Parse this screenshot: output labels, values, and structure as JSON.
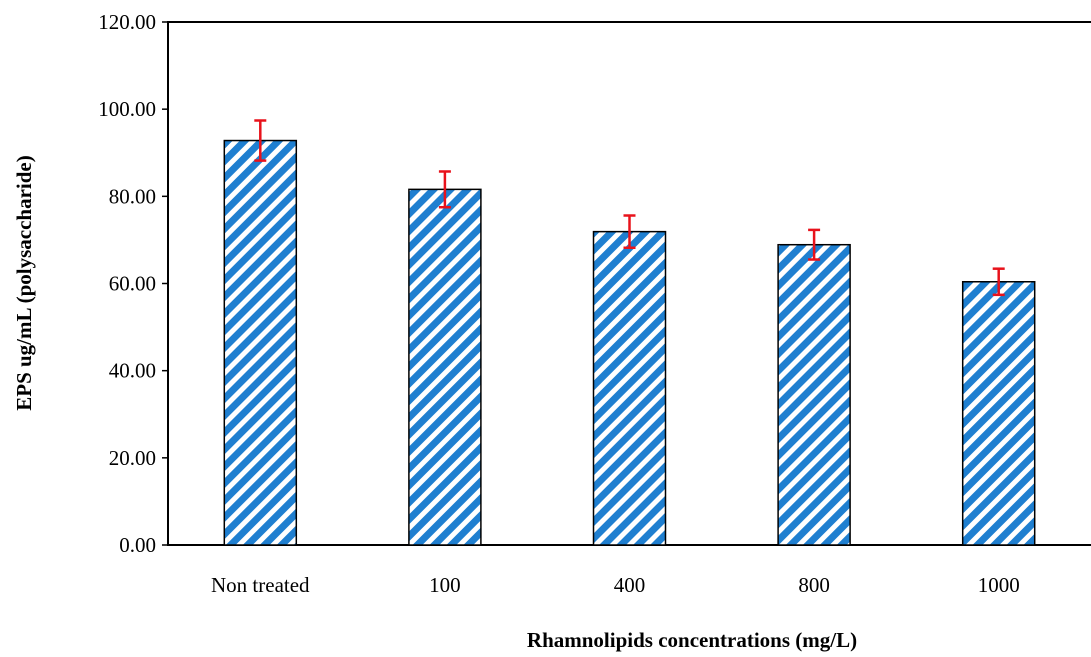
{
  "chart_data": {
    "type": "bar",
    "title": "",
    "xlabel": "Rhamnolipids concentrations (mg/L)",
    "ylabel": "EPS  ug/mL (polysaccharide)",
    "categories": [
      "Non treated",
      "100",
      "400",
      "800",
      "1000"
    ],
    "values": [
      92.8,
      81.6,
      71.9,
      68.9,
      60.4
    ],
    "error": [
      4.6,
      4.1,
      3.7,
      3.4,
      3.0
    ],
    "ylim": [
      0,
      120
    ],
    "yticks": [
      "0.00",
      "20.00",
      "40.00",
      "60.00",
      "80.00",
      "100.00",
      "120.00"
    ],
    "grid": false,
    "legend": "none",
    "colors": {
      "bar_fill": "#1f7fd0",
      "bar_stripe": "#ffffff",
      "bar_edge": "#000000",
      "error_bar": "#e8121b"
    }
  }
}
